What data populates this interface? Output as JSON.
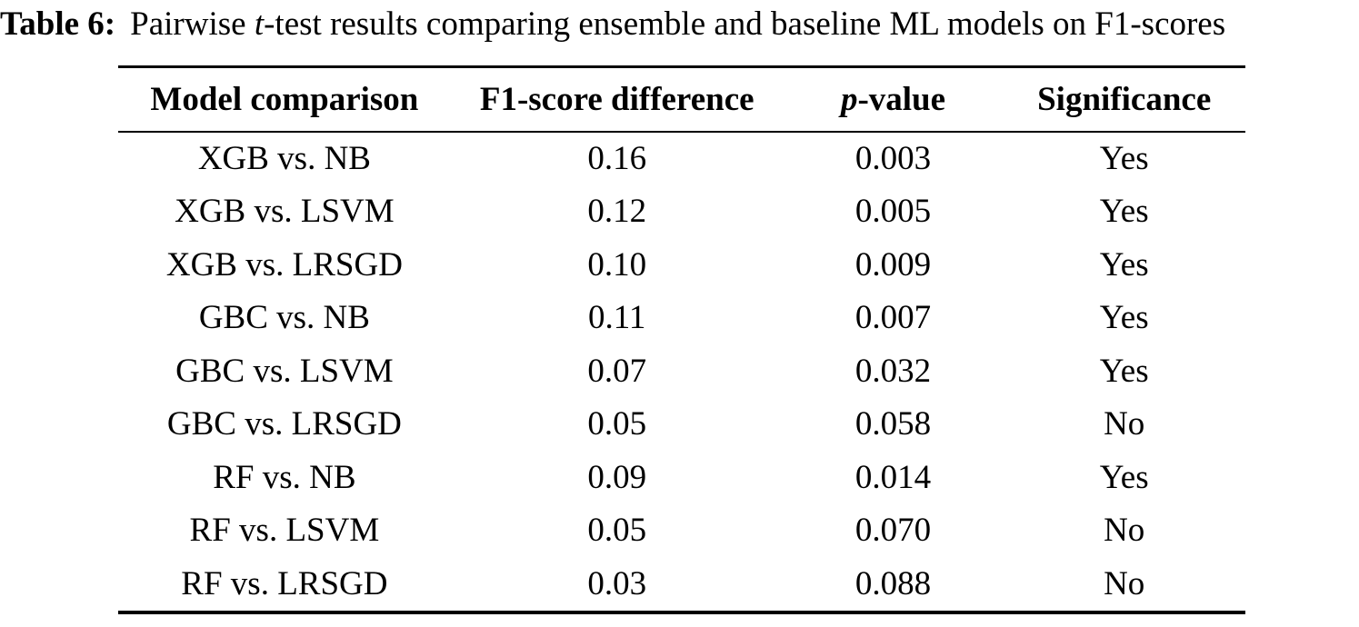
{
  "caption": {
    "label": "Table 6:",
    "pre": "Pairwise ",
    "italic": "t",
    "post": "-test results comparing ensemble and baseline ML models on F1-scores"
  },
  "table": {
    "headers": [
      "Model comparison",
      "F1-score difference",
      {
        "italic": "p",
        "rest": "-value"
      },
      "Significance"
    ],
    "rows": [
      [
        "XGB vs. NB",
        "0.16",
        "0.003",
        "Yes"
      ],
      [
        "XGB vs. LSVM",
        "0.12",
        "0.005",
        "Yes"
      ],
      [
        "XGB vs. LRSGD",
        "0.10",
        "0.009",
        "Yes"
      ],
      [
        "GBC vs. NB",
        "0.11",
        "0.007",
        "Yes"
      ],
      [
        "GBC vs. LSVM",
        "0.07",
        "0.032",
        "Yes"
      ],
      [
        "GBC vs. LRSGD",
        "0.05",
        "0.058",
        "No"
      ],
      [
        "RF vs. NB",
        "0.09",
        "0.014",
        "Yes"
      ],
      [
        "RF vs. LSVM",
        "0.05",
        "0.070",
        "No"
      ],
      [
        "RF vs. LRSGD",
        "0.03",
        "0.088",
        "No"
      ]
    ],
    "text_color": "#000000",
    "background_color": "#ffffff"
  }
}
